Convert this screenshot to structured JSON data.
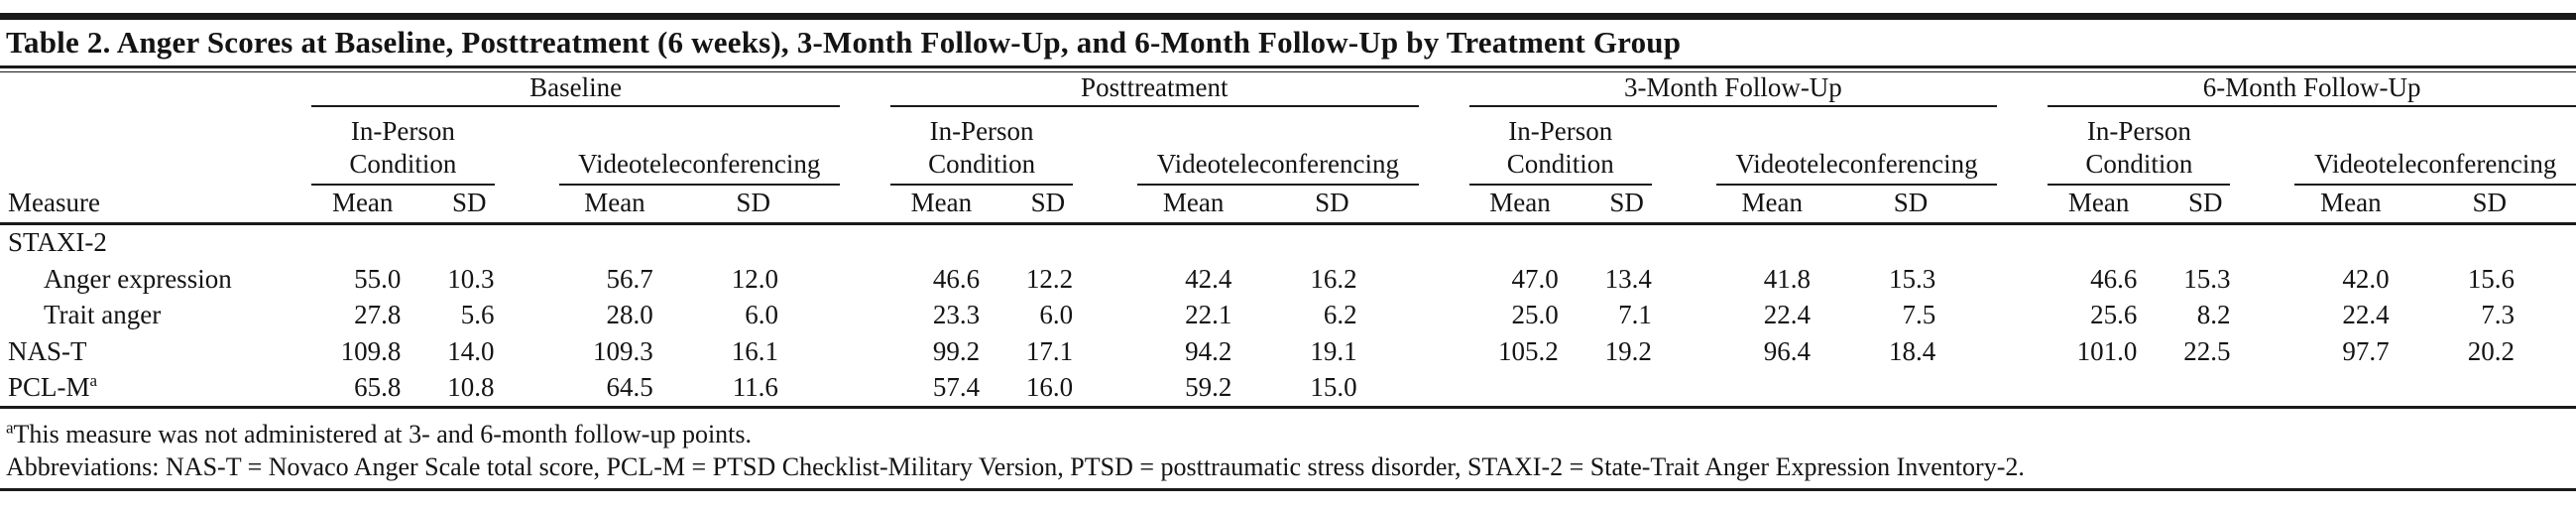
{
  "title": "Table 2. Anger Scores at Baseline, Posttreatment (6 weeks), 3-Month Follow-Up, and 6-Month Follow-Up by Treatment Group",
  "table": {
    "measure_header": "Measure",
    "groups": [
      {
        "label": "Baseline"
      },
      {
        "label": "Posttreatment"
      },
      {
        "label": "3-Month Follow-Up"
      },
      {
        "label": "6-Month Follow-Up"
      }
    ],
    "cond_in_person_line1": "In-Person",
    "cond_in_person_line2": "Condition",
    "cond_vtc": "Videoteleconferencing",
    "stat_mean": "Mean",
    "stat_sd": "SD",
    "rows": [
      {
        "measure": "STAXI-2",
        "indent": false,
        "values": [
          "",
          "",
          "",
          "",
          "",
          "",
          "",
          "",
          "",
          "",
          "",
          "",
          "",
          "",
          "",
          ""
        ]
      },
      {
        "measure": "Anger expression",
        "indent": true,
        "values": [
          "55.0",
          "10.3",
          "56.7",
          "12.0",
          "46.6",
          "12.2",
          "42.4",
          "16.2",
          "47.0",
          "13.4",
          "41.8",
          "15.3",
          "46.6",
          "15.3",
          "42.0",
          "15.6"
        ]
      },
      {
        "measure": "Trait anger",
        "indent": true,
        "values": [
          "27.8",
          "5.6",
          "28.0",
          "6.0",
          "23.3",
          "6.0",
          "22.1",
          "6.2",
          "25.0",
          "7.1",
          "22.4",
          "7.5",
          "25.6",
          "8.2",
          "22.4",
          "7.3"
        ]
      },
      {
        "measure": "NAS-T",
        "indent": false,
        "values": [
          "109.8",
          "14.0",
          "109.3",
          "16.1",
          "99.2",
          "17.1",
          "94.2",
          "19.1",
          "105.2",
          "19.2",
          "96.4",
          "18.4",
          "101.0",
          "22.5",
          "97.7",
          "20.2"
        ]
      },
      {
        "measure": "PCL-M",
        "sup": "a",
        "indent": false,
        "values": [
          "65.8",
          "10.8",
          "64.5",
          "11.6",
          "57.4",
          "16.0",
          "59.2",
          "15.0",
          "",
          "",
          "",
          "",
          "",
          "",
          "",
          ""
        ]
      }
    ]
  },
  "footnotes": {
    "marker": "a",
    "note": "This measure was not administered at 3- and 6-month follow-up points.",
    "abbreviations": "Abbreviations: NAS-T = Novaco Anger Scale total score, PCL-M = PTSD Checklist-Military Version, PTSD = posttraumatic stress disorder, STAXI-2 = State-Trait Anger Expression Inventory-2."
  }
}
